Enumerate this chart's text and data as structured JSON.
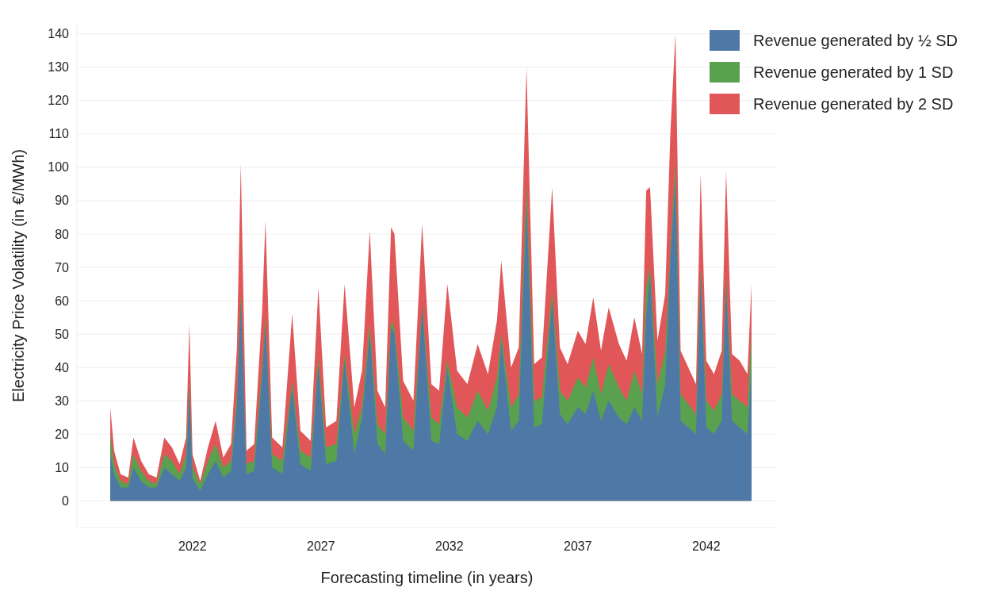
{
  "chart_data": {
    "type": "area",
    "xlabel": "Forecasting timeline (in years)",
    "ylabel": "Electricity Price Volatility (in €/MWh)",
    "x": [
      2018.8,
      2018.95,
      2019.2,
      2019.5,
      2019.7,
      2020.0,
      2020.3,
      2020.6,
      2020.9,
      2021.2,
      2021.5,
      2021.75,
      2021.88,
      2022.0,
      2022.3,
      2022.6,
      2022.9,
      2023.2,
      2023.5,
      2023.73,
      2023.88,
      2024.1,
      2024.4,
      2024.71,
      2024.84,
      2025.1,
      2025.5,
      2025.88,
      2026.2,
      2026.6,
      2026.9,
      2027.2,
      2027.6,
      2027.92,
      2028.3,
      2028.6,
      2028.9,
      2029.2,
      2029.5,
      2029.73,
      2029.86,
      2030.2,
      2030.6,
      2030.94,
      2031.3,
      2031.6,
      2031.92,
      2032.3,
      2032.7,
      2033.1,
      2033.5,
      2033.85,
      2034.02,
      2034.4,
      2034.7,
      2035.0,
      2035.3,
      2035.6,
      2036.0,
      2036.3,
      2036.6,
      2037.0,
      2037.3,
      2037.6,
      2037.9,
      2038.2,
      2038.6,
      2038.9,
      2039.2,
      2039.5,
      2039.66,
      2039.81,
      2040.1,
      2040.4,
      2040.6,
      2040.8,
      2041.0,
      2041.3,
      2041.6,
      2041.78,
      2042.0,
      2042.3,
      2042.6,
      2042.77,
      2043.0,
      2043.3,
      2043.6,
      2043.76
    ],
    "series": [
      {
        "name": "Revenue generated by ½ SD",
        "color": "#4e79a7",
        "values": [
          14,
          8,
          4,
          4,
          10,
          6,
          4,
          4,
          10,
          8,
          6,
          10,
          32,
          7,
          3,
          8,
          12,
          7,
          9,
          29,
          60,
          8,
          9,
          37,
          53,
          10,
          8,
          34,
          11,
          9,
          41,
          11,
          12,
          42,
          14,
          25,
          50,
          17,
          14,
          52,
          50,
          18,
          15,
          58,
          18,
          17,
          40,
          20,
          18,
          24,
          20,
          28,
          48,
          21,
          24,
          89,
          22,
          23,
          60,
          26,
          23,
          28,
          26,
          33,
          24,
          30,
          25,
          23,
          28,
          24,
          55,
          68,
          25,
          35,
          72,
          96,
          24,
          22,
          20,
          68,
          22,
          20,
          24,
          65,
          24,
          22,
          20,
          40
        ]
      },
      {
        "name": "Revenue generated by 1 SD",
        "color": "#59a14f",
        "values": [
          20,
          11,
          6,
          5,
          14,
          9,
          6,
          5,
          14,
          12,
          8,
          14,
          35,
          10,
          5,
          12,
          17,
          10,
          12,
          32,
          63,
          11,
          12,
          40,
          55,
          14,
          12,
          36,
          15,
          13,
          43,
          16,
          17,
          44,
          20,
          28,
          53,
          23,
          20,
          54,
          52,
          25,
          21,
          59,
          25,
          23,
          42,
          28,
          25,
          33,
          27,
          37,
          50,
          28,
          32,
          95,
          30,
          31,
          63,
          33,
          30,
          37,
          34,
          43,
          32,
          41,
          34,
          30,
          39,
          32,
          64,
          70,
          35,
          45,
          75,
          102,
          32,
          29,
          26,
          70,
          30,
          27,
          32,
          67,
          32,
          30,
          28,
          50
        ]
      },
      {
        "name": "Revenue generated by 2 SD",
        "color": "#e15759",
        "values": [
          28,
          15,
          8,
          7,
          19,
          12,
          8,
          7,
          19,
          16,
          11,
          19,
          53,
          14,
          6,
          16,
          24,
          13,
          17,
          46,
          101,
          15,
          17,
          57,
          84,
          19,
          16,
          56,
          21,
          18,
          64,
          22,
          24,
          65,
          28,
          39,
          81,
          33,
          28,
          82,
          80,
          36,
          30,
          83,
          35,
          33,
          65,
          39,
          35,
          47,
          38,
          54,
          72,
          40,
          46,
          130,
          41,
          43,
          94,
          46,
          41,
          51,
          47,
          61,
          45,
          58,
          47,
          42,
          55,
          44,
          93,
          94,
          48,
          62,
          110,
          140,
          45,
          40,
          35,
          98,
          42,
          38,
          45,
          99,
          44,
          42,
          38,
          65
        ]
      }
    ],
    "xlim": [
      2017.5,
      2044.75
    ],
    "xticks": [
      2022,
      2027,
      2032,
      2037,
      2042
    ],
    "ylim": [
      -8,
      143
    ],
    "yticks": [
      0,
      10,
      20,
      30,
      40,
      50,
      60,
      70,
      80,
      90,
      100,
      110,
      120,
      130,
      140
    ],
    "grid": "y",
    "legend": "top right"
  }
}
